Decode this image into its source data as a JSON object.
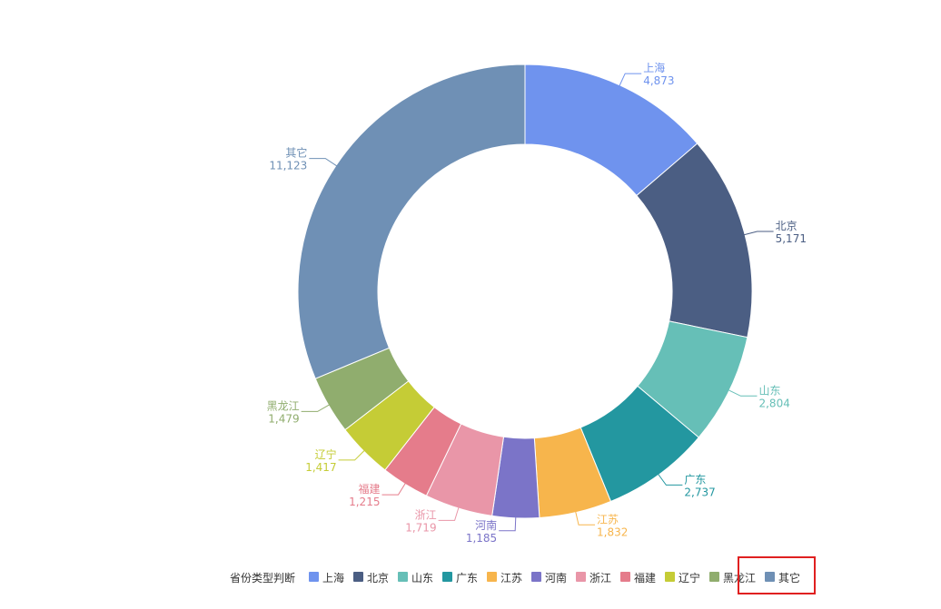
{
  "chart_data": {
    "type": "pie",
    "variant": "donut",
    "legend_title": "省份类型判断",
    "legend_position": "bottom",
    "slices": [
      {
        "label": "上海",
        "value": 4873,
        "value_text": "4,873",
        "color": "#6f93ee"
      },
      {
        "label": "北京",
        "value": 5171,
        "value_text": "5,171",
        "color": "#4b5e83"
      },
      {
        "label": "山东",
        "value": 2804,
        "value_text": "2,804",
        "color": "#66bfb7"
      },
      {
        "label": "广东",
        "value": 2737,
        "value_text": "2,737",
        "color": "#2397a0"
      },
      {
        "label": "江苏",
        "value": 1832,
        "value_text": "1,832",
        "color": "#f7b54c"
      },
      {
        "label": "河南",
        "value": 1185,
        "value_text": "1,185",
        "color": "#7b74c8"
      },
      {
        "label": "浙江",
        "value": 1719,
        "value_text": "1,719",
        "color": "#e996a8"
      },
      {
        "label": "福建",
        "value": 1215,
        "value_text": "1,215",
        "color": "#e57c8b"
      },
      {
        "label": "辽宁",
        "value": 1417,
        "value_text": "1,417",
        "color": "#c5cc36"
      },
      {
        "label": "黑龙江",
        "value": 1479,
        "value_text": "1,479",
        "color": "#90ad6e"
      },
      {
        "label": "其它",
        "value": 11123,
        "value_text": "11,123",
        "color": "#6f90b5"
      }
    ]
  },
  "colors": {
    "legend_text": "#333333",
    "highlight": "#e02020"
  }
}
